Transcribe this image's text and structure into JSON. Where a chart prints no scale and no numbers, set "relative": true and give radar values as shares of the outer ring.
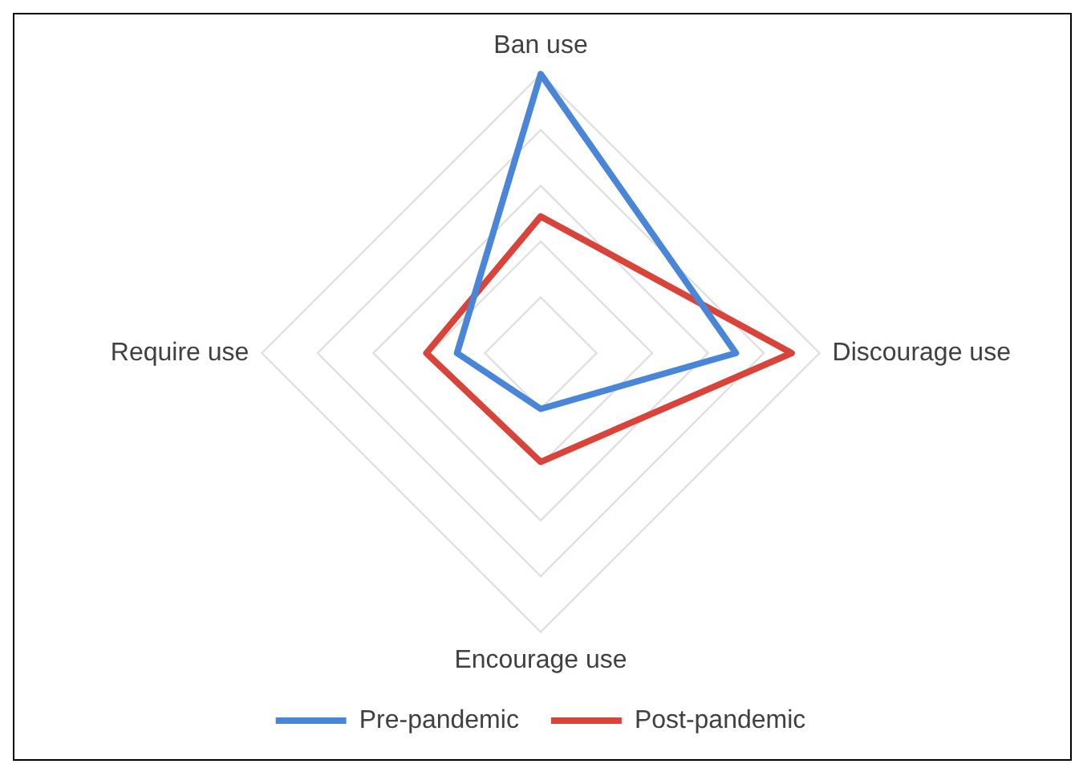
{
  "chart_data": {
    "type": "radar",
    "relative": true,
    "categories": [
      "Ban use",
      "Discourage use",
      "Encourage use",
      "Require use"
    ],
    "series": [
      {
        "name": "Pre-pandemic",
        "color": "#4a86d8",
        "values": [
          1.0,
          0.7,
          0.2,
          0.3
        ]
      },
      {
        "name": "Post-pandemic",
        "color": "#d8443a",
        "values": [
          0.49,
          0.9,
          0.39,
          0.41
        ]
      }
    ],
    "grid": true,
    "legend": "bottom",
    "marker": "none"
  }
}
